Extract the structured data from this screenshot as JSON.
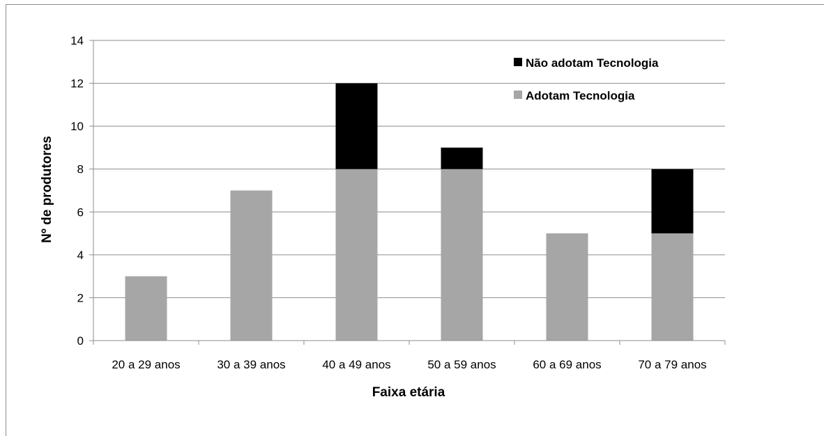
{
  "chart_data": {
    "type": "bar",
    "stacked": true,
    "categories": [
      "20 a 29 anos",
      "30 a 39 anos",
      "40 a 49 anos",
      "50 a 59 anos",
      "60 a 69 anos",
      "70 a 79 anos"
    ],
    "series": [
      {
        "name": "Adotam Tecnologia",
        "values": [
          3,
          7,
          8,
          8,
          5,
          5
        ],
        "color": "#a6a6a6"
      },
      {
        "name": "Não adotam Tecnologia",
        "values": [
          0,
          0,
          4,
          1,
          0,
          3
        ],
        "color": "#000000"
      }
    ],
    "legend_order": [
      "Não adotam Tecnologia",
      "Adotam Tecnologia"
    ],
    "xlabel": "Faixa etária",
    "ylabel": "Nº de produtores",
    "ylim": [
      0,
      14
    ],
    "yticks": [
      "0",
      "2",
      "4",
      "6",
      "8",
      "10",
      "12",
      "14"
    ],
    "grid": true,
    "gridline_color": "#8c8c8c",
    "axis_color": "#8c8c8c",
    "legend_position": "top-right"
  }
}
